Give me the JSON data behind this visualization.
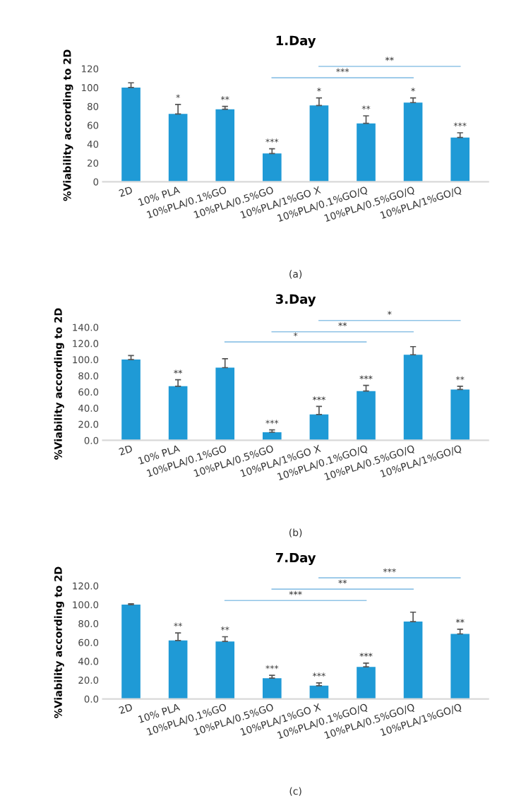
{
  "chart_data": [
    {
      "type": "bar",
      "title": "1.Day",
      "ylabel": "%Viability according to 2D",
      "categories": [
        "2D",
        "10% PLA",
        "10%PLA/0.1%GO",
        "10%PLA/0.5%GO",
        "10%PLA/1%GO X",
        "10%PLA/0.1%GO/Q",
        "10%PLA/0.5%GO/Q",
        "10%PLA/1%GO/Q"
      ],
      "values": [
        100,
        72,
        77,
        30,
        81,
        62,
        84,
        47
      ],
      "errors": [
        5,
        10,
        3,
        5,
        8,
        8,
        5,
        5
      ],
      "color": "#1f9ad6",
      "ylim": [
        0,
        120
      ],
      "yticks": [
        0,
        20,
        40,
        60,
        80,
        100,
        120
      ],
      "grid": false,
      "annotations": [
        {
          "text": "*",
          "x": "10% PLA",
          "y": 84
        },
        {
          "text": "**",
          "x": "10%PLA/0.1%GO",
          "y": 82
        },
        {
          "text": "***",
          "x": "10%PLA/0.5%GO",
          "y": 37
        },
        {
          "text": "*",
          "x": "10%PLA/1%GO X",
          "y": 91
        },
        {
          "text": "**",
          "x": "10%PLA/0.1%GO/Q",
          "y": 72
        },
        {
          "text": "*",
          "x": "10%PLA/0.5%GO/Q",
          "y": 91
        },
        {
          "text": "***",
          "x": "10%PLA/1%GO/Q",
          "y": 54
        },
        "***",
        "**",
        "(a)"
      ]
    },
    {
      "type": "bar",
      "title": "3.Day",
      "ylabel": "%Viability according to 2D",
      "categories": [
        "2D",
        "10% PLA",
        "10%PLA/0.1%GO",
        "10%PLA/0.5%GO",
        "10%PLA/1%GO X",
        "10%PLA/0.1%GO/Q",
        "10%PLA/0.5%GO/Q",
        "10%PLA/1%GO/Q"
      ],
      "values": [
        100,
        67,
        90,
        10,
        32,
        61,
        106,
        63
      ],
      "errors": [
        5,
        8,
        11,
        3,
        10,
        7,
        10,
        4
      ],
      "color": "#1f9ad6",
      "ylim": [
        0,
        140
      ],
      "yticks": [
        {
          "value": 0,
          "label": "0.0"
        },
        {
          "value": 20,
          "label": "20.0"
        },
        {
          "value": 40,
          "label": "40.0"
        },
        {
          "value": 60,
          "label": "60.0"
        },
        {
          "value": 80,
          "label": "80.0"
        },
        {
          "value": 100,
          "label": "100.0"
        },
        {
          "value": 120,
          "label": "120.0"
        },
        {
          "value": 140,
          "label": "140.0"
        }
      ],
      "grid": false,
      "annotations": [
        {
          "text": "**",
          "x": "10% PLA",
          "y": 77
        },
        {
          "text": "***",
          "x": "10%PLA/0.5%GO",
          "y": 15
        },
        {
          "text": "***",
          "x": "10%PLA/1%GO X",
          "y": 44
        },
        {
          "text": "***",
          "x": "10%PLA/0.1%GO/Q",
          "y": 70
        },
        {
          "text": "**",
          "x": "10%PLA/1%GO/Q",
          "y": 69
        },
        "*",
        "**",
        "*",
        "(b)"
      ]
    },
    {
      "type": "bar",
      "title": "7.Day",
      "ylabel": "%Viability according to 2D",
      "categories": [
        "2D",
        "10% PLA",
        "10%PLA/0.1%GO",
        "10%PLA/0.5%GO",
        "10%PLA/1%GO X",
        "10%PLA/0.1%GO/Q",
        "10%PLA/0.5%GO/Q",
        "10%PLA/1%GO/Q"
      ],
      "values": [
        100,
        62,
        61,
        22,
        14,
        34,
        82,
        69
      ],
      "errors": [
        1,
        8,
        5,
        3,
        3,
        4,
        10,
        5
      ],
      "color": "#1f9ad6",
      "ylim": [
        0,
        120
      ],
      "yticks": [
        {
          "value": 0,
          "label": "0.0"
        },
        {
          "value": 20,
          "label": "20.0"
        },
        {
          "value": 40,
          "label": "40.0"
        },
        {
          "value": 60,
          "label": "60.0"
        },
        {
          "value": 80,
          "label": "80.0"
        },
        {
          "value": 100,
          "label": "100.0"
        },
        {
          "value": 120,
          "label": "120.0"
        }
      ],
      "grid": false,
      "annotations": [
        {
          "text": "**",
          "x": "10% PLA",
          "y": 72
        },
        {
          "text": "**",
          "x": "10%PLA/0.1%GO",
          "y": 68
        },
        {
          "text": "***",
          "x": "10%PLA/0.5%GO",
          "y": 27
        },
        {
          "text": "***",
          "x": "10%PLA/1%GO X",
          "y": 19
        },
        {
          "text": "***",
          "x": "10%PLA/0.1%GO/Q",
          "y": 40
        },
        {
          "text": "**",
          "x": "10%PLA/1%GO/Q",
          "y": 76
        },
        "***",
        "**",
        "***",
        "(c)"
      ]
    }
  ]
}
